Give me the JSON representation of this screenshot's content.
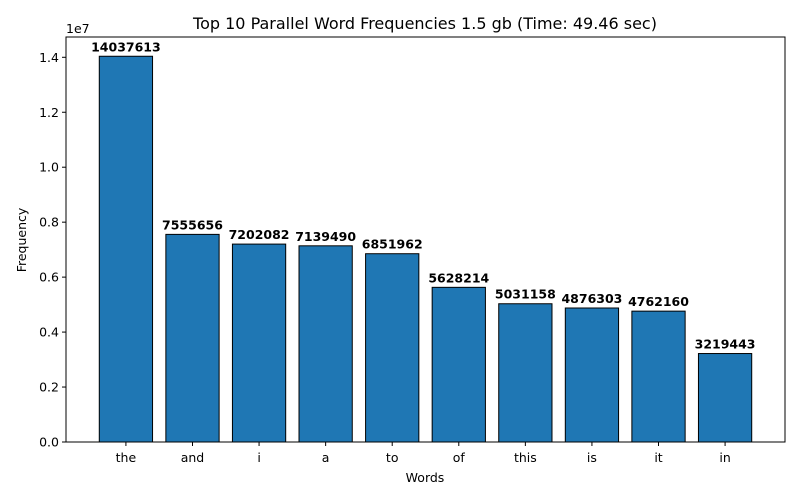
{
  "chart_data": {
    "type": "bar",
    "title": "Top 10 Parallel Word Frequencies 1.5 gb  (Time: 49.46 sec)",
    "xlabel": "Words",
    "ylabel": "Frequency",
    "y_offset_label": "1e7",
    "y_scale": 10000000,
    "ylim": [
      0,
      14738494
    ],
    "y_ticks": [
      0,
      2000000,
      4000000,
      6000000,
      8000000,
      10000000,
      12000000,
      14000000
    ],
    "y_tick_labels": [
      "0.0",
      "0.2",
      "0.4",
      "0.6",
      "0.8",
      "1.0",
      "1.2",
      "1.4"
    ],
    "categories": [
      "the",
      "and",
      "i",
      "a",
      "to",
      "of",
      "this",
      "is",
      "it",
      "in"
    ],
    "values": [
      14037613,
      7555656,
      7202082,
      7139490,
      6851962,
      5628214,
      5031158,
      4876303,
      4762160,
      3219443
    ],
    "value_labels": [
      "14037613",
      "7555656",
      "7202082",
      "7139490",
      "6851962",
      "5628214",
      "5031158",
      "4876303",
      "4762160",
      "3219443"
    ],
    "bar_color": "#1f77b4",
    "edge_color": "#000000",
    "grid": false
  }
}
